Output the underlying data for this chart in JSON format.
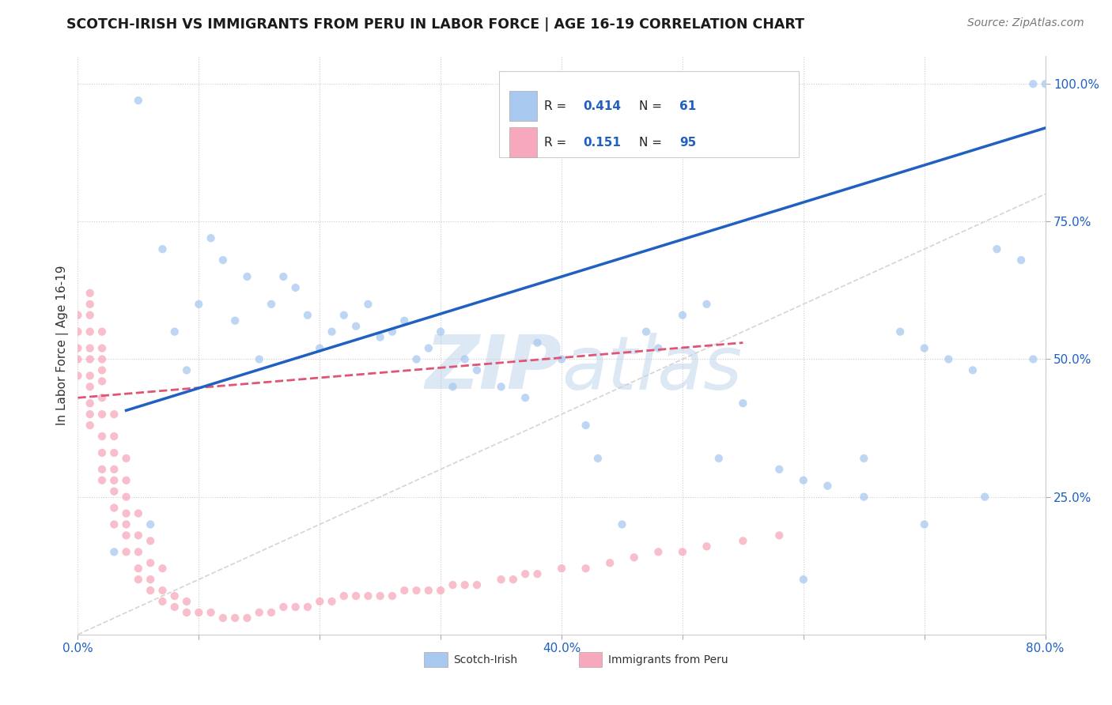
{
  "title": "SCOTCH-IRISH VS IMMIGRANTS FROM PERU IN LABOR FORCE | AGE 16-19 CORRELATION CHART",
  "source_text": "Source: ZipAtlas.com",
  "ylabel": "In Labor Force | Age 16-19",
  "xlim": [
    0.0,
    0.8
  ],
  "ylim": [
    0.0,
    1.05
  ],
  "xticks": [
    0.0,
    0.1,
    0.2,
    0.3,
    0.4,
    0.5,
    0.6,
    0.7,
    0.8
  ],
  "xticklabels": [
    "0.0%",
    "",
    "",
    "",
    "40.0%",
    "",
    "",
    "",
    "80.0%"
  ],
  "yticks": [
    0.25,
    0.5,
    0.75,
    1.0
  ],
  "yticklabels": [
    "25.0%",
    "50.0%",
    "75.0%",
    "100.0%"
  ],
  "blue_color": "#a8c8f0",
  "pink_color": "#f8a8bc",
  "blue_line_color": "#2060c0",
  "pink_line_color": "#e05575",
  "ref_line_color": "#d0d0d0",
  "watermark_text": "ZIPatlas",
  "watermark_color": "#dde8f5",
  "legend_R1": "0.414",
  "legend_N1": "61",
  "legend_R2": "0.151",
  "legend_N2": "95",
  "legend_label1": "Scotch-Irish",
  "legend_label2": "Immigrants from Peru",
  "blue_scatter_x": [
    0.03,
    0.05,
    0.06,
    0.07,
    0.08,
    0.09,
    0.1,
    0.11,
    0.12,
    0.13,
    0.14,
    0.15,
    0.16,
    0.17,
    0.18,
    0.19,
    0.2,
    0.21,
    0.22,
    0.23,
    0.24,
    0.25,
    0.26,
    0.27,
    0.28,
    0.29,
    0.3,
    0.31,
    0.32,
    0.33,
    0.35,
    0.37,
    0.38,
    0.4,
    0.42,
    0.43,
    0.45,
    0.47,
    0.48,
    0.5,
    0.52,
    0.53,
    0.55,
    0.58,
    0.6,
    0.62,
    0.65,
    0.68,
    0.7,
    0.72,
    0.74,
    0.76,
    0.78,
    0.79,
    0.8,
    0.81,
    0.79,
    0.75,
    0.7,
    0.65,
    0.6
  ],
  "blue_scatter_y": [
    0.15,
    0.97,
    0.2,
    0.7,
    0.55,
    0.48,
    0.6,
    0.72,
    0.68,
    0.57,
    0.65,
    0.5,
    0.6,
    0.65,
    0.63,
    0.58,
    0.52,
    0.55,
    0.58,
    0.56,
    0.6,
    0.54,
    0.55,
    0.57,
    0.5,
    0.52,
    0.55,
    0.45,
    0.5,
    0.48,
    0.45,
    0.43,
    0.53,
    0.5,
    0.38,
    0.32,
    0.2,
    0.55,
    0.52,
    0.58,
    0.6,
    0.32,
    0.42,
    0.3,
    0.28,
    0.27,
    0.32,
    0.55,
    0.52,
    0.5,
    0.48,
    0.7,
    0.68,
    1.0,
    1.0,
    1.0,
    0.5,
    0.25,
    0.2,
    0.25,
    0.1
  ],
  "pink_scatter_x": [
    0.0,
    0.0,
    0.0,
    0.0,
    0.0,
    0.01,
    0.01,
    0.01,
    0.01,
    0.01,
    0.01,
    0.01,
    0.01,
    0.01,
    0.01,
    0.01,
    0.02,
    0.02,
    0.02,
    0.02,
    0.02,
    0.02,
    0.02,
    0.02,
    0.02,
    0.02,
    0.02,
    0.03,
    0.03,
    0.03,
    0.03,
    0.03,
    0.03,
    0.03,
    0.03,
    0.04,
    0.04,
    0.04,
    0.04,
    0.04,
    0.04,
    0.04,
    0.05,
    0.05,
    0.05,
    0.05,
    0.05,
    0.06,
    0.06,
    0.06,
    0.06,
    0.07,
    0.07,
    0.07,
    0.08,
    0.08,
    0.09,
    0.09,
    0.1,
    0.11,
    0.12,
    0.13,
    0.14,
    0.15,
    0.16,
    0.17,
    0.18,
    0.19,
    0.2,
    0.21,
    0.22,
    0.23,
    0.24,
    0.25,
    0.26,
    0.27,
    0.28,
    0.29,
    0.3,
    0.31,
    0.32,
    0.33,
    0.35,
    0.36,
    0.37,
    0.38,
    0.4,
    0.42,
    0.44,
    0.46,
    0.48,
    0.5,
    0.52,
    0.55,
    0.58
  ],
  "pink_scatter_y": [
    0.47,
    0.5,
    0.52,
    0.55,
    0.58,
    0.38,
    0.4,
    0.42,
    0.45,
    0.47,
    0.5,
    0.52,
    0.55,
    0.58,
    0.6,
    0.62,
    0.28,
    0.3,
    0.33,
    0.36,
    0.4,
    0.43,
    0.46,
    0.48,
    0.5,
    0.52,
    0.55,
    0.2,
    0.23,
    0.26,
    0.28,
    0.3,
    0.33,
    0.36,
    0.4,
    0.15,
    0.18,
    0.2,
    0.22,
    0.25,
    0.28,
    0.32,
    0.1,
    0.12,
    0.15,
    0.18,
    0.22,
    0.08,
    0.1,
    0.13,
    0.17,
    0.06,
    0.08,
    0.12,
    0.05,
    0.07,
    0.04,
    0.06,
    0.04,
    0.04,
    0.03,
    0.03,
    0.03,
    0.04,
    0.04,
    0.05,
    0.05,
    0.05,
    0.06,
    0.06,
    0.07,
    0.07,
    0.07,
    0.07,
    0.07,
    0.08,
    0.08,
    0.08,
    0.08,
    0.09,
    0.09,
    0.09,
    0.1,
    0.1,
    0.11,
    0.11,
    0.12,
    0.12,
    0.13,
    0.14,
    0.15,
    0.15,
    0.16,
    0.17,
    0.18
  ],
  "title_fontsize": 12.5,
  "tick_fontsize": 11,
  "source_fontsize": 10,
  "ylabel_fontsize": 11
}
